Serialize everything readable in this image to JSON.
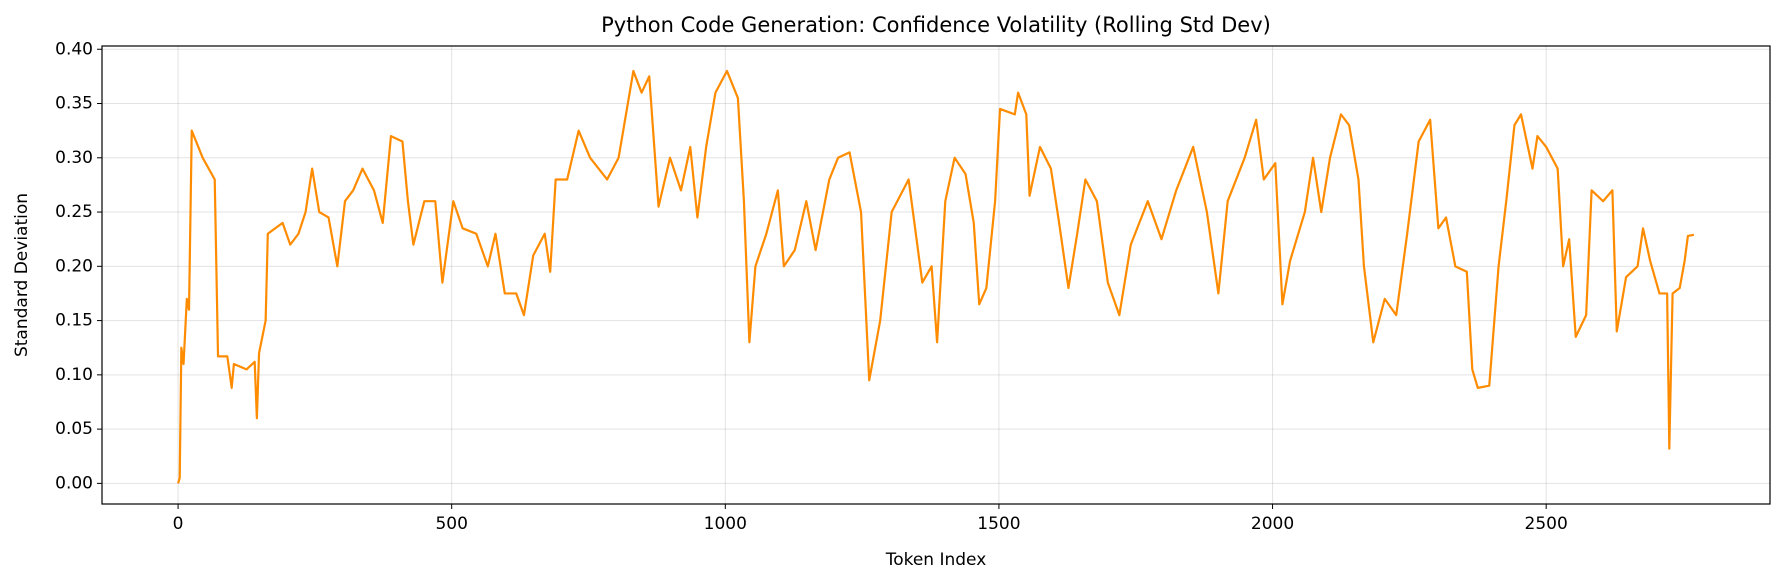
{
  "chart_data": {
    "type": "line",
    "title": "Python Code Generation: Confidence Volatility (Rolling Std Dev)",
    "x_label": "Token Index",
    "y_label": "Standard Deviation",
    "xlim": [
      -139,
      2909
    ],
    "ylim": [
      -0.019,
      0.403
    ],
    "xticks": [
      0,
      500,
      1000,
      1500,
      2000,
      2500
    ],
    "yticks": [
      {
        "value": 0,
        "label": "0.00"
      },
      0.05,
      {
        "value": 0.1,
        "label": "0.10"
      },
      0.15,
      {
        "value": 0.2,
        "label": "0.20"
      },
      0.25,
      {
        "value": 0.3,
        "label": "0.30"
      },
      0.35,
      {
        "value": 0.4,
        "label": "0.40"
      }
    ],
    "grid": true,
    "series": [
      {
        "color": "#ff8c00",
        "x": [
          0,
          3,
          6,
          10,
          16,
          20,
          25,
          45,
          67,
          73,
          90,
          98,
          102,
          125,
          140,
          144,
          148,
          160,
          164,
          191,
          205,
          220,
          233,
          245,
          258,
          275,
          291,
          305,
          320,
          337,
          358,
          374,
          389,
          410,
          420,
          430,
          450,
          470,
          483,
          503,
          520,
          545,
          566,
          580,
          597,
          618,
          632,
          649,
          670,
          680,
          690,
          711,
          732,
          753,
          784,
          805,
          832,
          847,
          861,
          878,
          899,
          919,
          936,
          949,
          965,
          982,
          1003,
          1023,
          1034,
          1044,
          1055,
          1075,
          1096,
          1107,
          1127,
          1148,
          1165,
          1190,
          1206,
          1227,
          1248,
          1263,
          1283,
          1304,
          1335,
          1360,
          1377,
          1387,
          1402,
          1419,
          1439,
          1454,
          1464,
          1477,
          1493,
          1502,
          1529,
          1535,
          1550,
          1556,
          1575,
          1595,
          1610,
          1627,
          1643,
          1658,
          1679,
          1699,
          1720,
          1741,
          1772,
          1797,
          1824,
          1855,
          1880,
          1901,
          1918,
          1949,
          1970,
          1984,
          2005,
          2018,
          2032,
          2059,
          2074,
          2089,
          2105,
          2125,
          2140,
          2157,
          2167,
          2184,
          2205,
          2226,
          2246,
          2267,
          2288,
          2303,
          2317,
          2334,
          2355,
          2365,
          2375,
          2396,
          2413,
          2427,
          2442,
          2454,
          2475,
          2484,
          2500,
          2521,
          2531,
          2542,
          2554,
          2573,
          2583,
          2604,
          2621,
          2629,
          2646,
          2667,
          2677,
          2690,
          2707,
          2721,
          2725,
          2731,
          2744,
          2753,
          2759,
          2770
        ],
        "values": [
          0,
          0.005,
          0.125,
          0.11,
          0.17,
          0.16,
          0.325,
          0.3,
          0.28,
          0.117,
          0.117,
          0.088,
          0.11,
          0.105,
          0.112,
          0.06,
          0.12,
          0.15,
          0.23,
          0.24,
          0.22,
          0.23,
          0.25,
          0.29,
          0.25,
          0.245,
          0.2,
          0.26,
          0.27,
          0.29,
          0.27,
          0.24,
          0.32,
          0.315,
          0.26,
          0.22,
          0.26,
          0.26,
          0.185,
          0.26,
          0.235,
          0.23,
          0.2,
          0.23,
          0.175,
          0.175,
          0.155,
          0.21,
          0.23,
          0.195,
          0.28,
          0.28,
          0.325,
          0.3,
          0.28,
          0.3,
          0.38,
          0.36,
          0.375,
          0.255,
          0.3,
          0.27,
          0.31,
          0.245,
          0.31,
          0.36,
          0.38,
          0.355,
          0.26,
          0.13,
          0.2,
          0.23,
          0.27,
          0.2,
          0.215,
          0.26,
          0.215,
          0.28,
          0.3,
          0.305,
          0.25,
          0.095,
          0.15,
          0.25,
          0.28,
          0.185,
          0.2,
          0.13,
          0.26,
          0.3,
          0.285,
          0.24,
          0.165,
          0.18,
          0.26,
          0.345,
          0.34,
          0.36,
          0.34,
          0.265,
          0.31,
          0.29,
          0.24,
          0.18,
          0.23,
          0.28,
          0.26,
          0.185,
          0.155,
          0.22,
          0.26,
          0.225,
          0.27,
          0.31,
          0.25,
          0.175,
          0.26,
          0.3,
          0.335,
          0.28,
          0.295,
          0.165,
          0.205,
          0.25,
          0.3,
          0.25,
          0.3,
          0.34,
          0.33,
          0.28,
          0.2,
          0.13,
          0.17,
          0.155,
          0.23,
          0.315,
          0.335,
          0.235,
          0.245,
          0.2,
          0.195,
          0.105,
          0.088,
          0.09,
          0.2,
          0.26,
          0.33,
          0.34,
          0.29,
          0.32,
          0.31,
          0.29,
          0.2,
          0.225,
          0.135,
          0.155,
          0.27,
          0.26,
          0.27,
          0.14,
          0.19,
          0.2,
          0.235,
          0.205,
          0.175,
          0.175,
          0.032,
          0.175,
          0.18,
          0.205,
          0.228,
          0.229
        ]
      }
    ]
  }
}
